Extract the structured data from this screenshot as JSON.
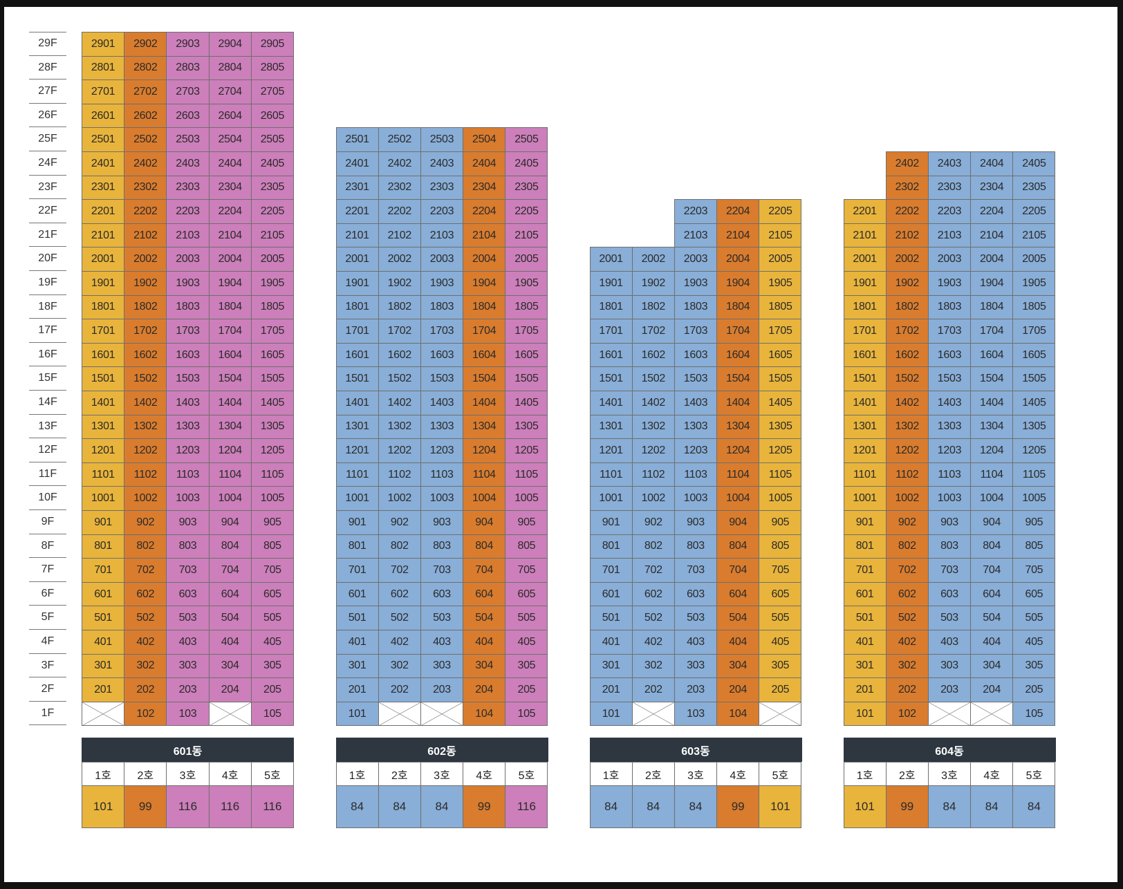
{
  "colors": {
    "101": "#e8b43c",
    "99": "#d97c2e",
    "116": "#cc7fba",
    "84": "#89aed7"
  },
  "floors": [
    "29F",
    "28F",
    "27F",
    "26F",
    "25F",
    "24F",
    "23F",
    "22F",
    "21F",
    "20F",
    "19F",
    "18F",
    "17F",
    "16F",
    "15F",
    "14F",
    "13F",
    "12F",
    "11F",
    "10F",
    "9F",
    "8F",
    "7F",
    "6F",
    "5F",
    "4F",
    "3F",
    "2F",
    "1F"
  ],
  "buildings": [
    {
      "name": "601동",
      "ho_labels": [
        "1호",
        "2호",
        "3호",
        "4호",
        "5호"
      ],
      "areas": [
        "101",
        "99",
        "116",
        "116",
        "116"
      ],
      "top_floor": [
        29,
        29,
        29,
        29,
        29
      ],
      "empty_1f": [
        true,
        false,
        false,
        true,
        false
      ]
    },
    {
      "name": "602동",
      "ho_labels": [
        "1호",
        "2호",
        "3호",
        "4호",
        "5호"
      ],
      "areas": [
        "84",
        "84",
        "84",
        "99",
        "116"
      ],
      "top_floor": [
        25,
        25,
        25,
        25,
        25
      ],
      "empty_1f": [
        false,
        true,
        true,
        false,
        false
      ]
    },
    {
      "name": "603동",
      "ho_labels": [
        "1호",
        "2호",
        "3호",
        "4호",
        "5호"
      ],
      "areas": [
        "84",
        "84",
        "84",
        "99",
        "101"
      ],
      "top_floor": [
        20,
        20,
        22,
        22,
        22
      ],
      "empty_1f": [
        false,
        true,
        false,
        false,
        true
      ]
    },
    {
      "name": "604동",
      "ho_labels": [
        "1호",
        "2호",
        "3호",
        "4호",
        "5호"
      ],
      "areas": [
        "101",
        "99",
        "84",
        "84",
        "84"
      ],
      "top_floor": [
        22,
        24,
        24,
        24,
        24
      ],
      "empty_1f": [
        false,
        false,
        true,
        true,
        false
      ]
    }
  ]
}
